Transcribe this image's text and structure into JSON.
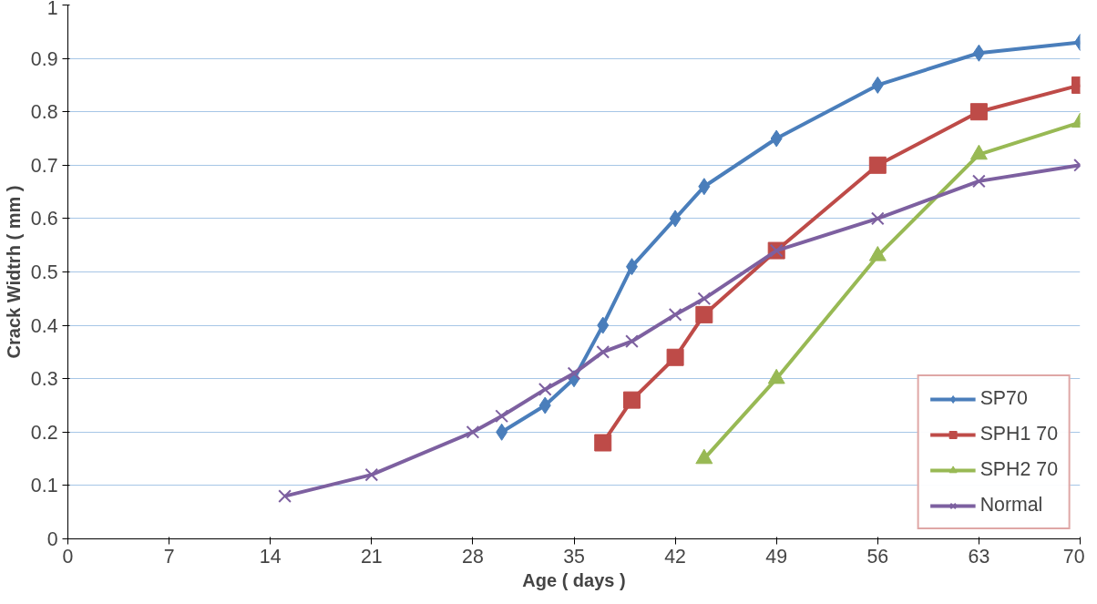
{
  "chart_data": {
    "type": "line",
    "xlabel": "Age ( days )",
    "ylabel": "Crack Widtrh ( mm )",
    "xlim": [
      0,
      70
    ],
    "xticks": [
      0,
      7,
      14,
      21,
      28,
      35,
      42,
      49,
      56,
      63,
      70
    ],
    "ylim": [
      0,
      1
    ],
    "yticks": [
      0,
      0.1,
      0.2,
      0.3,
      0.4,
      0.5,
      0.6,
      0.7,
      0.8,
      0.9,
      1
    ],
    "grid": "y",
    "legend": "bottom right",
    "line_style": "solid",
    "series": [
      {
        "name": "SP70",
        "color": "#4a7ebb",
        "marker": "diamond",
        "x": [
          30,
          33,
          35,
          37,
          39,
          42,
          44,
          49,
          56,
          63,
          70
        ],
        "values": [
          0.2,
          0.25,
          0.3,
          0.4,
          0.51,
          0.6,
          0.66,
          0.75,
          0.85,
          0.91,
          0.93
        ]
      },
      {
        "name": "SPH1 70",
        "color": "#be4b48",
        "marker": "square",
        "x": [
          37,
          39,
          42,
          44,
          49,
          56,
          63,
          70
        ],
        "values": [
          0.18,
          0.26,
          0.34,
          0.42,
          0.54,
          0.7,
          0.8,
          0.85
        ]
      },
      {
        "name": "SPH2 70",
        "color": "#98b954",
        "marker": "triangle",
        "x": [
          44,
          49,
          56,
          63,
          70
        ],
        "values": [
          0.15,
          0.3,
          0.53,
          0.72,
          0.78
        ]
      },
      {
        "name": "Normal",
        "color": "#7d60a0",
        "marker": "cross",
        "x": [
          15,
          21,
          28,
          30,
          33,
          35,
          37,
          39,
          42,
          44,
          49,
          56,
          63,
          70
        ],
        "values": [
          0.08,
          0.12,
          0.2,
          0.23,
          0.28,
          0.31,
          0.35,
          0.37,
          0.42,
          0.45,
          0.54,
          0.6,
          0.67,
          0.7
        ]
      }
    ]
  }
}
